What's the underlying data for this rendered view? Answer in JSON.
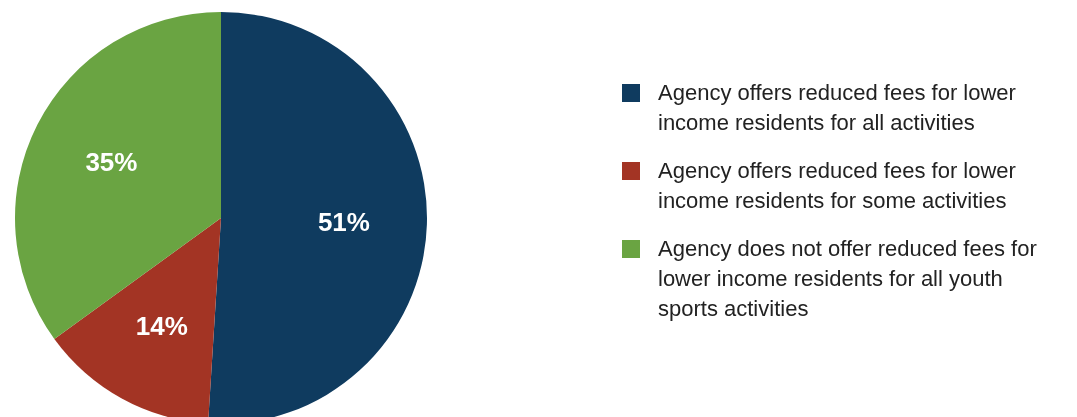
{
  "chart_data": {
    "type": "pie",
    "categories": [
      "Agency offers reduced fees for lower income residents for all activities",
      "Agency offers reduced fees for lower income residents for some activities",
      "Agency does not offer reduced fees for lower income residents for all youth sports activities"
    ],
    "values": [
      51,
      14,
      35
    ],
    "colors": [
      "#0f3b5f",
      "#a33424",
      "#6aa442"
    ],
    "value_labels": [
      "51%",
      "14%",
      "35%"
    ],
    "legend": "right"
  }
}
